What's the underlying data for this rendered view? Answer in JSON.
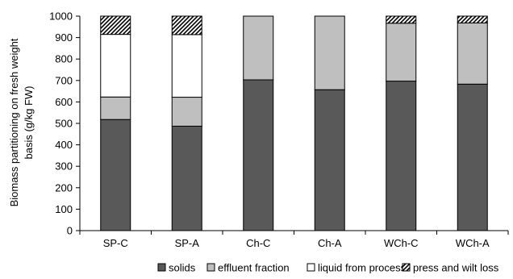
{
  "chart_data": {
    "type": "bar",
    "stacked": true,
    "categories": [
      "SP-C",
      "SP-A",
      "Ch-C",
      "Ch-A",
      "WCh-C",
      "WCh-A"
    ],
    "series": [
      {
        "name": "solids",
        "values": [
          518,
          487,
          703,
          657,
          697,
          683
        ],
        "color": "#595959",
        "pattern": "solid"
      },
      {
        "name": "effluent fraction",
        "values": [
          105,
          135,
          297,
          343,
          270,
          285
        ],
        "color": "#bfbfbf",
        "pattern": "solid"
      },
      {
        "name": "liquid from process",
        "values": [
          292,
          292,
          0,
          0,
          0,
          0
        ],
        "color": "#ffffff",
        "pattern": "solid"
      },
      {
        "name": "press and wilt loss",
        "values": [
          85,
          86,
          0,
          0,
          33,
          32
        ],
        "color": "#ffffff",
        "pattern": "diagonal-hatch"
      }
    ],
    "xlabel": "",
    "ylabel_lines": [
      "Biomass partitioning on fresh weight",
      "basis (g/kg FW)"
    ],
    "ylim": [
      0,
      1000
    ],
    "yticks": [
      0,
      100,
      200,
      300,
      400,
      500,
      600,
      700,
      800,
      900,
      1000
    ],
    "grid": false,
    "legend_position": "bottom"
  }
}
